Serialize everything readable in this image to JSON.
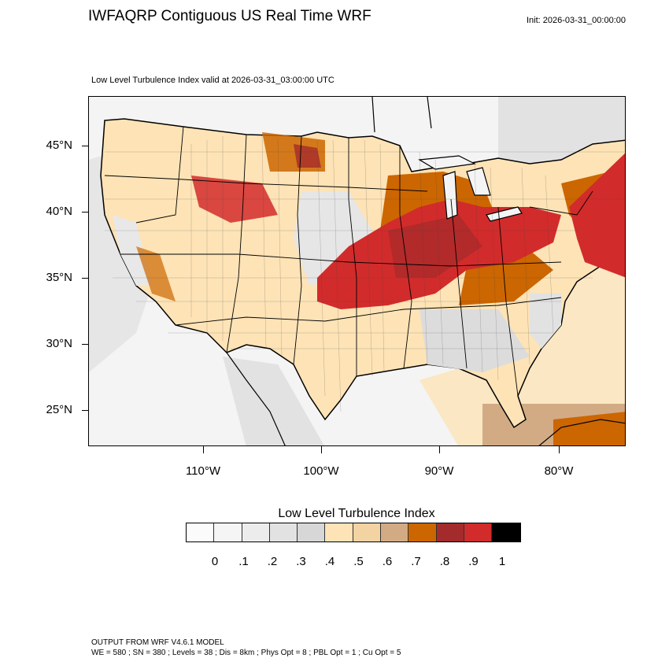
{
  "header": {
    "title": "IWFAQRP Contiguous US Real Time WRF",
    "init": "Init: 2026-03-31_00:00:00",
    "subtitle": "Low Level Turbulence Index valid at 2026-03-31_03:00:00 UTC"
  },
  "axes": {
    "lat_labels": [
      "45°N",
      "40°N",
      "35°N",
      "30°N",
      "25°N"
    ],
    "lon_labels": [
      "110°W",
      "100°W",
      "90°W",
      "80°W"
    ]
  },
  "colorbar": {
    "title": "Low Level Turbulence Index",
    "labels": [
      "0",
      ".1",
      ".2",
      ".3",
      ".4",
      ".5",
      ".6",
      ".7",
      ".8",
      ".9",
      "1"
    ],
    "colors": [
      "#fbfbfb",
      "#f5f5f5",
      "#ececec",
      "#e2e2e2",
      "#d7d7d7",
      "#fde3b6",
      "#f4d3a2",
      "#d2ab85",
      "#cc6600",
      "#a42b2b",
      "#d22b2b",
      "#000000"
    ]
  },
  "footer": {
    "line1": "OUTPUT FROM WRF V4.6.1 MODEL",
    "line2": "WE = 580 ; SN = 380 ; Levels = 38 ; Dis = 8km ; Phys Opt = 8 ; PBL Opt = 1 ; Cu Opt = 5"
  },
  "map": {
    "field_name": "low-level-turbulence-index",
    "land_base_color": "#fde3b6",
    "ocean_color": "#f4f4f4"
  }
}
